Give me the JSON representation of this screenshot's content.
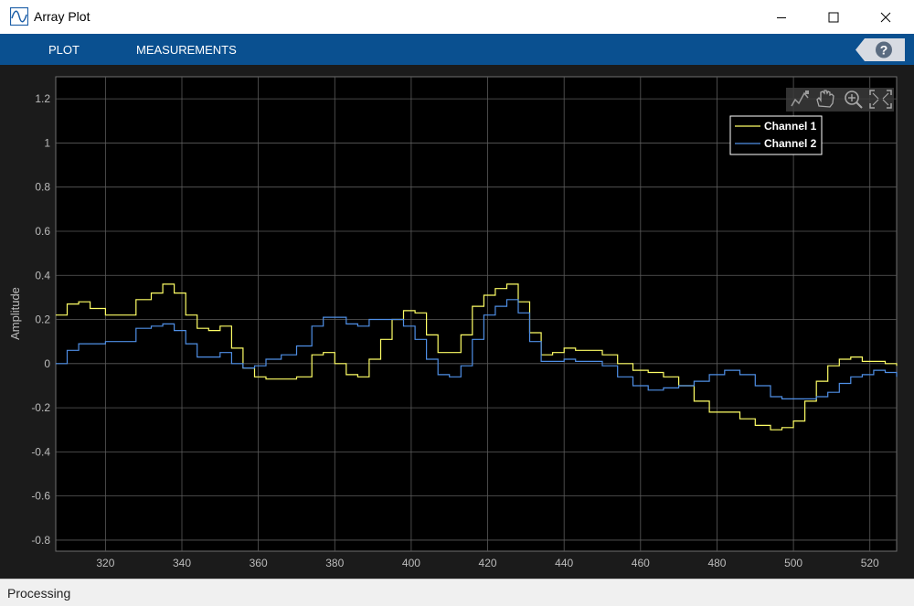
{
  "window": {
    "title": "Array Plot"
  },
  "toolstrip": {
    "tabs": [
      {
        "label": "PLOT"
      },
      {
        "label": "MEASUREMENTS"
      }
    ],
    "help_label": "?"
  },
  "status": {
    "text": "Processing"
  },
  "chart_data": {
    "type": "line",
    "xlabel": "",
    "ylabel": "Amplitude",
    "xlim": [
      307,
      527
    ],
    "ylim": [
      -0.85,
      1.3
    ],
    "xticks": [
      320,
      340,
      360,
      380,
      400,
      420,
      440,
      460,
      480,
      500,
      520
    ],
    "yticks": [
      -0.8,
      -0.6,
      -0.4,
      -0.2,
      0,
      0.2,
      0.4,
      0.6,
      0.8,
      1,
      1.2
    ],
    "grid": true,
    "legend": "top-right",
    "style": "stairs",
    "series": [
      {
        "name": "Channel 1",
        "color": "#ffff66",
        "x": [
          307,
          310,
          313,
          316,
          320,
          324,
          328,
          332,
          335,
          338,
          341,
          344,
          347,
          350,
          353,
          356,
          359,
          362,
          366,
          370,
          374,
          377,
          380,
          383,
          386,
          389,
          392,
          395,
          398,
          401,
          404,
          407,
          410,
          413,
          416,
          419,
          422,
          425,
          428,
          431,
          434,
          437,
          440,
          443,
          446,
          450,
          454,
          458,
          462,
          466,
          470,
          474,
          478,
          482,
          486,
          490,
          494,
          497,
          500,
          503,
          506,
          509,
          512,
          515,
          518,
          521,
          524,
          527
        ],
        "y": [
          0.22,
          0.27,
          0.28,
          0.25,
          0.22,
          0.22,
          0.29,
          0.32,
          0.36,
          0.32,
          0.22,
          0.16,
          0.15,
          0.17,
          0.07,
          -0.02,
          -0.06,
          -0.07,
          -0.07,
          -0.06,
          0.04,
          0.05,
          0.0,
          -0.05,
          -0.06,
          0.02,
          0.11,
          0.2,
          0.24,
          0.23,
          0.13,
          0.05,
          0.05,
          0.13,
          0.26,
          0.31,
          0.34,
          0.36,
          0.28,
          0.14,
          0.04,
          0.05,
          0.07,
          0.06,
          0.06,
          0.04,
          0.0,
          -0.03,
          -0.04,
          -0.06,
          -0.1,
          -0.17,
          -0.22,
          -0.22,
          -0.25,
          -0.28,
          -0.3,
          -0.29,
          -0.26,
          -0.17,
          -0.08,
          -0.01,
          0.02,
          0.03,
          0.01,
          0.01,
          0.0,
          -0.01
        ]
      },
      {
        "name": "Channel 2",
        "color": "#4f8fe6",
        "x": [
          307,
          310,
          313,
          316,
          320,
          324,
          328,
          332,
          335,
          338,
          341,
          344,
          347,
          350,
          353,
          356,
          359,
          362,
          366,
          370,
          374,
          377,
          380,
          383,
          386,
          389,
          392,
          395,
          398,
          401,
          404,
          407,
          410,
          413,
          416,
          419,
          422,
          425,
          428,
          431,
          434,
          437,
          440,
          443,
          446,
          450,
          454,
          458,
          462,
          466,
          470,
          474,
          478,
          482,
          486,
          490,
          494,
          497,
          500,
          503,
          506,
          509,
          512,
          515,
          518,
          521,
          524,
          527
        ],
        "y": [
          0.0,
          0.06,
          0.09,
          0.09,
          0.1,
          0.1,
          0.16,
          0.17,
          0.18,
          0.15,
          0.09,
          0.03,
          0.03,
          0.05,
          0.0,
          -0.02,
          -0.01,
          0.02,
          0.04,
          0.08,
          0.17,
          0.21,
          0.21,
          0.18,
          0.17,
          0.2,
          0.2,
          0.2,
          0.17,
          0.11,
          0.02,
          -0.05,
          -0.06,
          -0.01,
          0.11,
          0.22,
          0.26,
          0.29,
          0.23,
          0.1,
          0.01,
          0.01,
          0.02,
          0.01,
          0.01,
          -0.01,
          -0.06,
          -0.1,
          -0.12,
          -0.11,
          -0.1,
          -0.08,
          -0.05,
          -0.03,
          -0.05,
          -0.1,
          -0.15,
          -0.16,
          -0.16,
          -0.16,
          -0.15,
          -0.13,
          -0.09,
          -0.06,
          -0.05,
          -0.03,
          -0.04,
          -0.06
        ]
      }
    ]
  }
}
